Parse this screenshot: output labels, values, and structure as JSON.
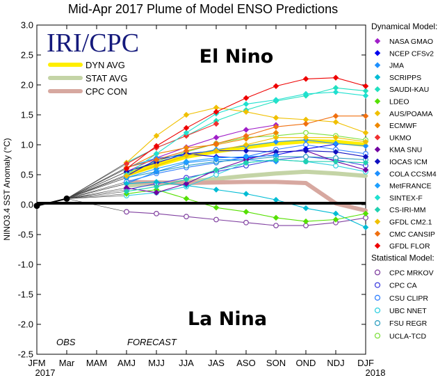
{
  "chart_data": {
    "type": "line",
    "title": "Mid-Apr 2017 Plume of Model ENSO Predictions",
    "ylabel": "NINO3.4 SST Anomaly (°C)",
    "xlabel": "",
    "ylim": [
      -2.5,
      3.0
    ],
    "yticks": [
      "3.0",
      "2.5",
      "2.0",
      "1.5",
      "1.0",
      "0.5",
      "0.0",
      "-0.5",
      "-1.0",
      "-1.5",
      "-2.0",
      "-2.5"
    ],
    "yticks_values": [
      3.0,
      2.5,
      2.0,
      1.5,
      1.0,
      0.5,
      0.0,
      -0.5,
      -1.0,
      -1.5,
      -2.0,
      -2.5
    ],
    "categories": [
      "JFM",
      "Mar",
      "MAM",
      "AMJ",
      "MJJ",
      "JJA",
      "JAS",
      "ASO",
      "SON",
      "OND",
      "NDJ",
      "DJF"
    ],
    "year_labels": [
      "2017",
      "2018"
    ],
    "logo": "IRI/CPC",
    "el_nino_label": "El Nino",
    "la_nina_label": "La Nina",
    "obs_label": "OBS",
    "forecast_label": "FORECAST",
    "observed": [
      -0.02,
      0.1
    ],
    "averages": [
      {
        "name": "DYN AVG",
        "color": "#ffee00",
        "values": [
          0.5,
          0.66,
          0.8,
          0.89,
          0.96,
          1.02,
          1.06,
          1.05,
          1.0
        ]
      },
      {
        "name": "STAT AVG",
        "color": "#c4d4a6",
        "values": [
          0.32,
          0.35,
          0.38,
          0.43,
          0.48,
          0.52,
          0.55,
          0.52,
          0.48
        ]
      },
      {
        "name": "CPC CON",
        "color": "#d7a8a0",
        "values": [
          0.38,
          0.37,
          0.36,
          0.37,
          0.38,
          0.38,
          0.36,
          0.02,
          -0.1
        ]
      }
    ],
    "dynamical_heading": "Dynamical Model:",
    "statistical_heading": "Statistical Model:",
    "dynamical": [
      {
        "name": "NASA GMAO",
        "color": "#a01ec8",
        "values": [
          0.55,
          0.78,
          0.96,
          1.12,
          1.25,
          1.33
        ]
      },
      {
        "name": "NCEP CFSv2",
        "color": "#0000ee",
        "values": [
          0.48,
          0.75,
          0.85,
          0.8,
          0.78,
          0.83,
          0.93,
          1.01
        ]
      },
      {
        "name": "JMA",
        "color": "#1e90ff",
        "values": [
          0.35,
          0.55,
          0.7,
          0.75,
          0.75,
          0.72
        ]
      },
      {
        "name": "SCRIPPS",
        "color": "#00bcd4",
        "values": [
          0.35,
          0.38,
          0.32,
          0.25,
          0.18,
          0.08,
          -0.06,
          -0.15,
          -0.38
        ]
      },
      {
        "name": "SAUDI-KAU",
        "color": "#20e0c0",
        "values": [
          0.7,
          0.95,
          1.15,
          1.4,
          1.58,
          1.73,
          1.82,
          1.95,
          1.9
        ]
      },
      {
        "name": "LDEO",
        "color": "#55e000",
        "values": [
          0.18,
          0.25,
          0.1,
          -0.05,
          -0.12,
          -0.22,
          -0.28,
          -0.25,
          -0.15
        ]
      },
      {
        "name": "AUS/POAMA",
        "color": "#f0c000",
        "values": [
          0.7,
          1.15,
          1.5,
          1.62,
          1.55,
          1.45,
          1.42,
          1.38,
          1.2
        ]
      },
      {
        "name": "ECMWF",
        "color": "#ee8800",
        "values": [
          0.6,
          0.85,
          0.95,
          1.0,
          1.1,
          1.2
        ]
      },
      {
        "name": "UKMO",
        "color": "#f03030",
        "values": [
          0.68,
          0.95,
          1.15,
          1.35
        ]
      },
      {
        "name": "KMA SNU",
        "color": "#7000a0",
        "values": [
          0.28,
          0.2,
          0.35,
          0.58,
          0.75,
          0.88,
          0.9,
          0.72,
          0.58
        ]
      },
      {
        "name": "IOCAS ICM",
        "color": "#1010c0",
        "values": [
          0.55,
          0.7,
          0.85,
          0.9,
          0.9,
          0.88,
          0.9,
          0.88,
          0.8
        ]
      },
      {
        "name": "COLA CCSM4",
        "color": "#1e90ff",
        "values": [
          0.62,
          0.78,
          0.82,
          0.92,
          0.98,
          1.05,
          1.08,
          1.02,
          0.98
        ]
      },
      {
        "name": "MetFRANCE",
        "color": "#1ea0ff",
        "values": [
          0.45,
          0.6,
          0.72,
          0.78,
          0.8,
          0.82
        ]
      },
      {
        "name": "SINTEX-F",
        "color": "#20e0d0",
        "values": [
          0.5,
          0.85,
          1.2,
          1.52,
          1.68,
          1.75,
          1.85,
          1.88,
          1.82
        ]
      },
      {
        "name": "CS-IRI-MM",
        "color": "#20d0b0",
        "values": [
          0.22,
          0.3,
          0.42,
          0.58,
          0.7,
          0.75,
          0.72,
          0.72,
          0.7
        ]
      },
      {
        "name": "GFDL CM2.1",
        "color": "#f0c000",
        "values": [
          0.48,
          0.65,
          0.82,
          0.9,
          1.0,
          1.12,
          1.12,
          1.12,
          1.05
        ]
      },
      {
        "name": "CMC CANSIP",
        "color": "#f07010",
        "values": [
          0.62,
          0.75,
          0.9,
          1.02,
          1.15,
          1.3,
          1.35,
          1.48,
          1.48
        ]
      },
      {
        "name": "GFDL FLOR",
        "color": "#ee0000",
        "values": [
          0.6,
          0.98,
          1.28,
          1.55,
          1.78,
          1.98,
          2.1,
          2.12,
          1.98
        ]
      }
    ],
    "statistical": [
      {
        "name": "CPC MRKOV",
        "color": "#8040a0",
        "values": [
          -0.12,
          -0.15,
          -0.2,
          -0.25,
          -0.3,
          -0.35,
          -0.35,
          -0.3,
          -0.22
        ]
      },
      {
        "name": "CPC CA",
        "color": "#4040e0",
        "values": [
          0.25,
          0.35,
          0.45,
          0.55,
          0.65,
          0.75,
          0.8,
          0.75,
          0.65
        ]
      },
      {
        "name": "CSU CLIPR",
        "color": "#3080ff",
        "values": [
          0.38,
          0.52,
          0.62,
          0.7,
          0.8,
          0.92,
          1.0,
          0.92,
          0.85
        ]
      },
      {
        "name": "UBC NNET",
        "color": "#30d0e0",
        "values": [
          0.15,
          0.2,
          0.3,
          0.5,
          0.7,
          0.75,
          0.72,
          0.65,
          0.55
        ]
      },
      {
        "name": "FSU REGR",
        "color": "#30a0c0",
        "values": [
          0.45,
          0.55,
          0.65,
          0.72,
          0.75,
          0.8,
          0.8,
          0.78,
          0.75
        ]
      },
      {
        "name": "UCLA-TCD",
        "color": "#80e040",
        "values": [
          0.55,
          0.72,
          0.88,
          1.02,
          1.12,
          1.15,
          1.2,
          1.15,
          1.08
        ]
      }
    ]
  }
}
